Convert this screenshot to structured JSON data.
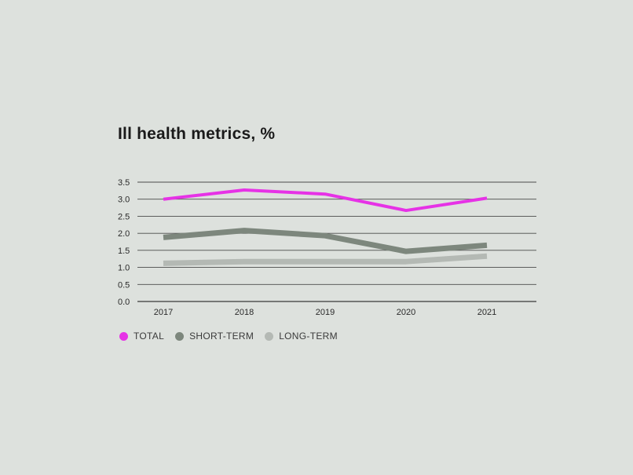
{
  "chart_data": {
    "type": "line",
    "title": "Ill health metrics, %",
    "xlabel": "",
    "ylabel": "",
    "categories": [
      "2017",
      "2018",
      "2019",
      "2020",
      "2021"
    ],
    "ylim": [
      0,
      3.5
    ],
    "yticks": [
      "0.0",
      "0.5",
      "1.0",
      "1.5",
      "2.0",
      "2.5",
      "3.0",
      "3.5"
    ],
    "grid": true,
    "legend_position": "bottom-left",
    "series": [
      {
        "name": "TOTAL",
        "values": [
          3.0,
          3.27,
          3.15,
          2.67,
          3.03
        ],
        "color": "#e632e6"
      },
      {
        "name": "SHORT-TERM",
        "values": [
          1.88,
          2.08,
          1.93,
          1.47,
          1.65
        ],
        "color": "#7d877d"
      },
      {
        "name": "LONG-TERM",
        "values": [
          1.12,
          1.17,
          1.17,
          1.17,
          1.33
        ],
        "color": "#b4b9b4"
      }
    ]
  }
}
